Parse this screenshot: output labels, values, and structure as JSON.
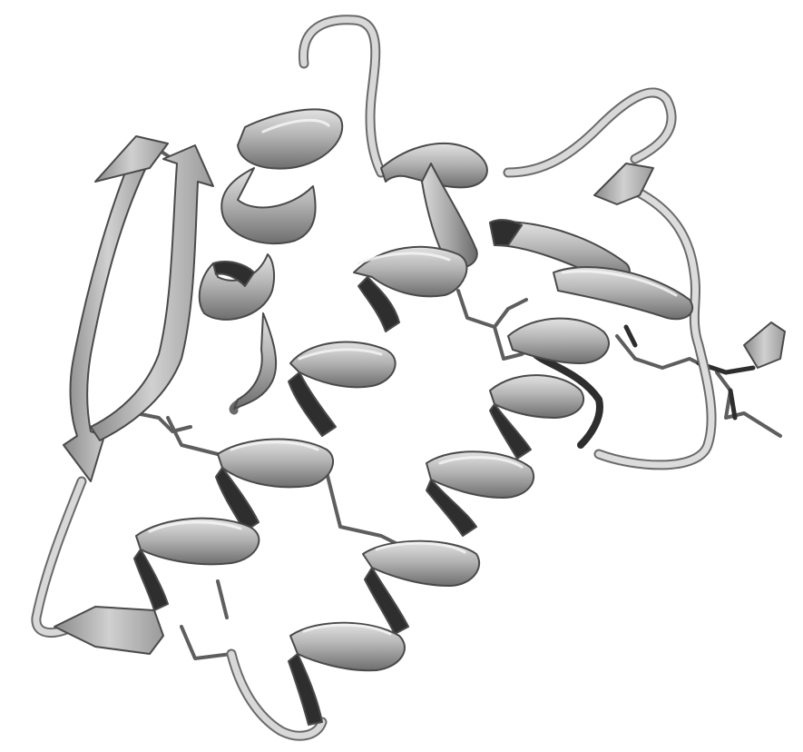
{
  "colors": {
    "background": "#ffffff",
    "ribbon_light": "#c9c9c9",
    "ribbon_mid": "#9c9c9c",
    "ribbon_dark": "#2e2e2e",
    "ribbon_edge": "#4a4a4a",
    "coil": "#d4d4d4",
    "stick": "#5e5e5e"
  },
  "depiction": {
    "kind": "protein-ribbon-structure"
  },
  "icons": {
    "helix": "alpha-helix-icon",
    "strand": "beta-strand-arrow-icon",
    "coil": "loop-coil-icon",
    "sidechain": "sidechain-stick-icon"
  }
}
